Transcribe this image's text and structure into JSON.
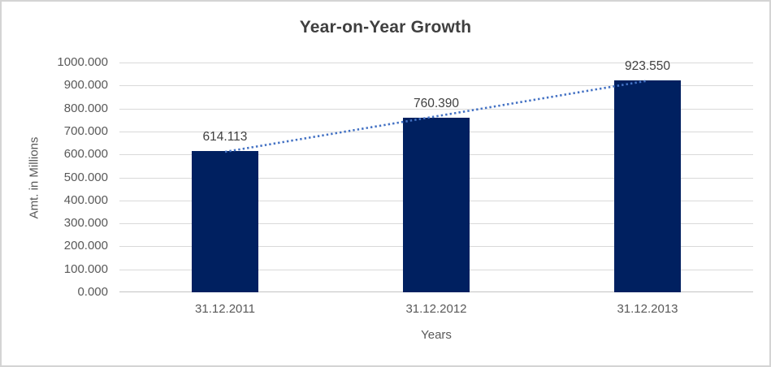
{
  "chart": {
    "colors": {
      "bar": "#002060",
      "trendline": "#4472C4",
      "gridline": "#d9d9d9",
      "axis_line": "#c3c3c3",
      "title_text": "#3f3f3f",
      "tick_text": "#595959",
      "data_label_text": "#404040",
      "frame_border": "#d4d4d4"
    }
  },
  "chart_data": {
    "type": "bar",
    "title": "Year-on-Year Growth",
    "xlabel": "Years",
    "ylabel": "Amt. in Millions",
    "categories": [
      "31.12.2011",
      "31.12.2012",
      "31.12.2013"
    ],
    "values": [
      614.113,
      760.39,
      923.55
    ],
    "data_labels": [
      "614.113",
      "760.390",
      "923.550"
    ],
    "ylim": [
      0,
      1000
    ],
    "y_tick_step": 100,
    "y_tick_labels": [
      "0.000",
      "100.000",
      "200.000",
      "300.000",
      "400.000",
      "500.000",
      "600.000",
      "700.000",
      "800.000",
      "900.000",
      "1000.000"
    ],
    "grid": true,
    "legend": false,
    "trendline": {
      "type": "linear",
      "style": "dotted"
    }
  }
}
